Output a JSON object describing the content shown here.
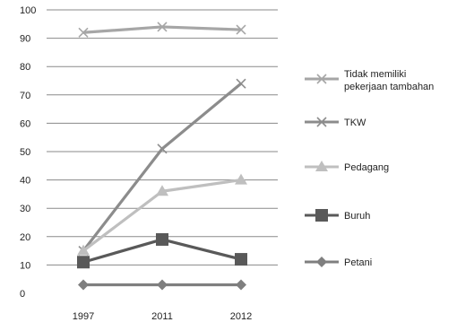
{
  "chart_data": {
    "type": "line",
    "categories": [
      "1997",
      "2011",
      "2012"
    ],
    "ylim": [
      0,
      100
    ],
    "y_ticks": [
      "0",
      "10",
      "20",
      "30",
      "40",
      "50",
      "60",
      "70",
      "80",
      "90",
      "100"
    ],
    "grid": true,
    "legend_position": "right",
    "series": [
      {
        "name": "Tidak memiliki pekerjaan tambahan",
        "values": [
          92,
          94,
          93
        ],
        "color": "#a6a6a6",
        "marker": "x"
      },
      {
        "name": "TKW",
        "values": [
          15,
          51,
          74
        ],
        "color": "#8c8c8c",
        "marker": "x"
      },
      {
        "name": "Pedagang",
        "values": [
          15,
          36,
          40
        ],
        "color": "#bfbfbf",
        "marker": "triangle"
      },
      {
        "name": "Buruh",
        "values": [
          11,
          19,
          12
        ],
        "color": "#595959",
        "marker": "square"
      },
      {
        "name": "Petani",
        "values": [
          3,
          3,
          3
        ],
        "color": "#7f7f7f",
        "marker": "diamond"
      }
    ]
  }
}
